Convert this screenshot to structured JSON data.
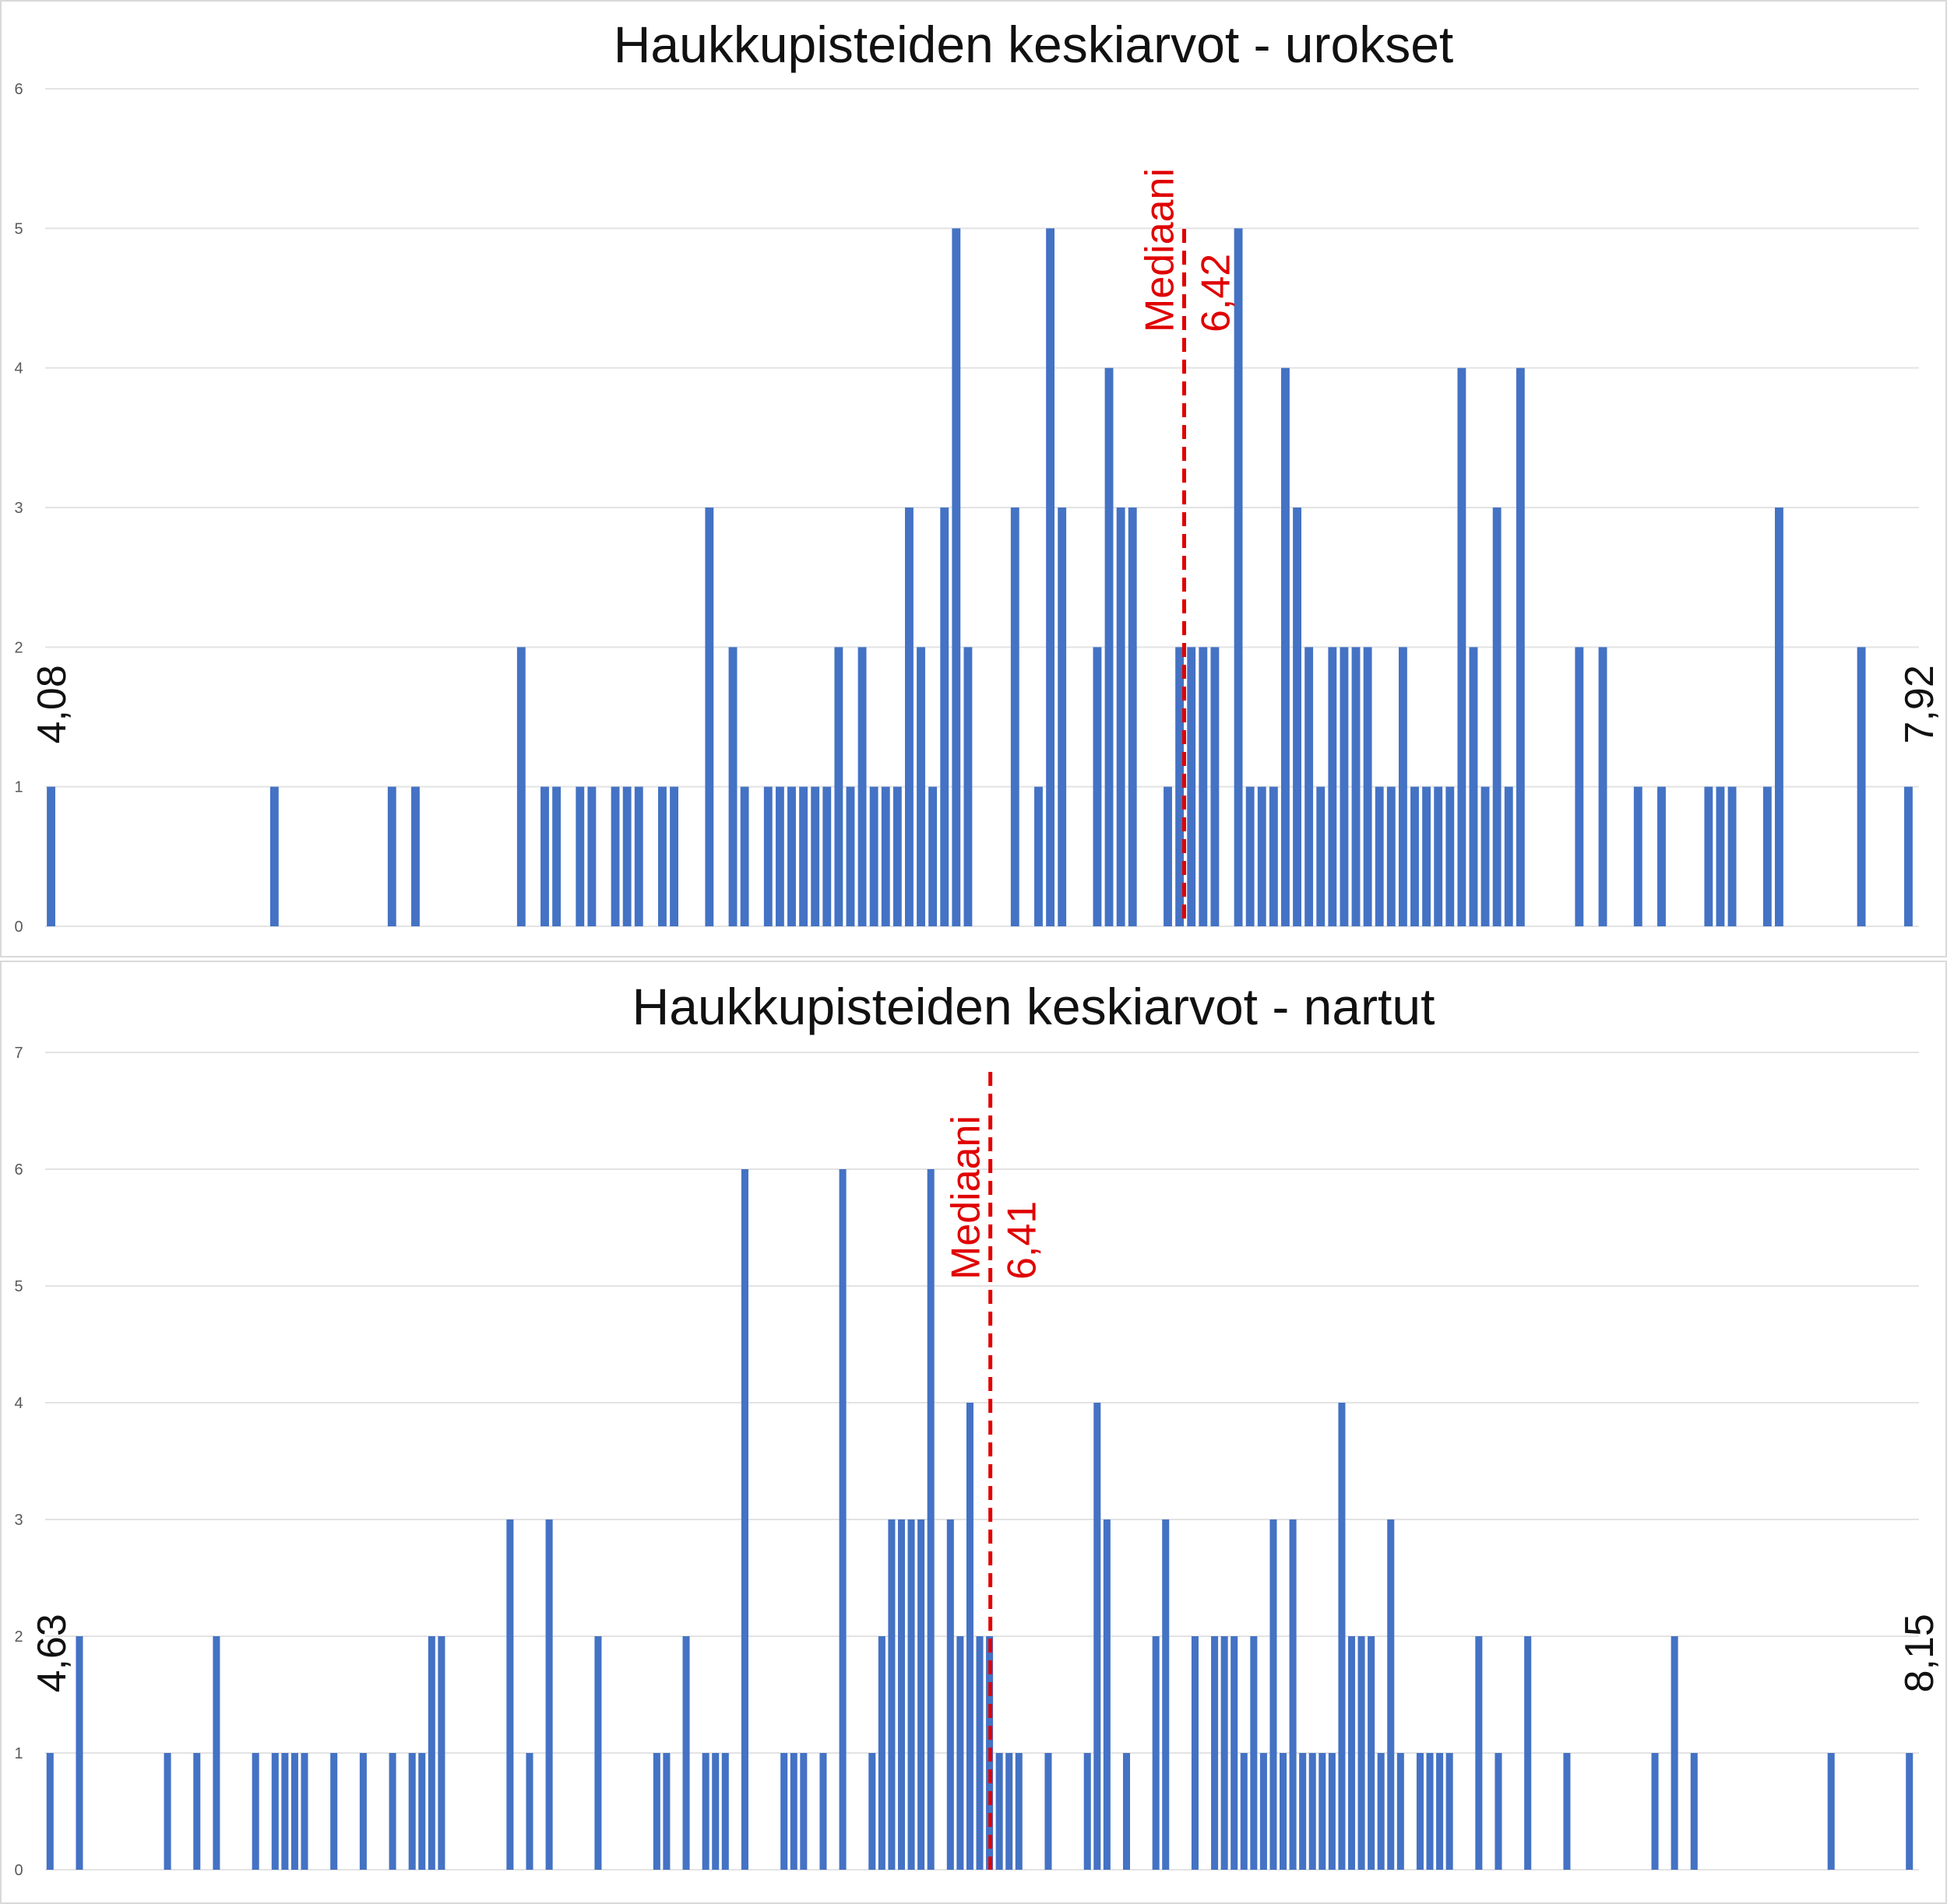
{
  "chart_data": [
    {
      "type": "bar",
      "title": "Haukkupisteiden keskiarvot - urokset",
      "ylim": [
        0,
        6
      ],
      "yticks": [
        0,
        1,
        2,
        3,
        4,
        5,
        6
      ],
      "grid": true,
      "legend": "none",
      "bar_color": "#4472C4",
      "annotation_color": "#E00000",
      "range_min_label": "4,08",
      "range_max_label": "7,92",
      "median_label": "Mediaani",
      "median_value_label": "6,42",
      "x_range": [
        4.08,
        7.92
      ],
      "median": 6.42,
      "values": [
        1,
        0,
        0,
        0,
        0,
        0,
        0,
        0,
        0,
        0,
        0,
        0,
        0,
        0,
        0,
        0,
        0,
        0,
        0,
        1,
        0,
        0,
        0,
        0,
        0,
        0,
        0,
        0,
        0,
        1,
        0,
        1,
        0,
        0,
        0,
        0,
        0,
        0,
        0,
        0,
        2,
        0,
        1,
        1,
        0,
        1,
        1,
        0,
        1,
        1,
        1,
        0,
        1,
        1,
        0,
        0,
        3,
        0,
        2,
        1,
        0,
        1,
        1,
        1,
        1,
        1,
        1,
        2,
        1,
        2,
        1,
        1,
        1,
        3,
        2,
        1,
        3,
        5,
        2,
        0,
        0,
        0,
        3,
        0,
        1,
        5,
        3,
        0,
        0,
        2,
        4,
        3,
        3,
        0,
        0,
        1,
        2,
        2,
        2,
        2,
        0,
        5,
        1,
        1,
        1,
        4,
        3,
        2,
        1,
        2,
        2,
        2,
        2,
        1,
        1,
        2,
        1,
        1,
        1,
        1,
        4,
        2,
        1,
        3,
        1,
        4,
        0,
        0,
        0,
        0,
        2,
        0,
        2,
        0,
        0,
        1,
        0,
        1,
        0,
        0,
        0,
        1,
        1,
        1,
        0,
        0,
        1,
        3,
        0,
        0,
        0,
        0,
        0,
        0,
        2,
        0,
        0,
        0,
        1
      ]
    },
    {
      "type": "bar",
      "title": "Haukkupisteiden keskiarvot - nartut",
      "ylim": [
        0,
        7
      ],
      "yticks": [
        0,
        1,
        2,
        3,
        4,
        5,
        6,
        7
      ],
      "grid": true,
      "legend": "none",
      "bar_color": "#4472C4",
      "annotation_color": "#E00000",
      "range_min_label": "4,63",
      "range_max_label": "8,15",
      "median_label": "Mediaani",
      "median_value_label": "6,41",
      "x_range": [
        4.63,
        8.15
      ],
      "median": 6.41,
      "values": [
        1,
        0,
        0,
        2,
        0,
        0,
        0,
        0,
        0,
        0,
        0,
        0,
        1,
        0,
        0,
        1,
        0,
        2,
        0,
        0,
        0,
        1,
        0,
        1,
        1,
        1,
        1,
        0,
        0,
        1,
        0,
        0,
        1,
        0,
        0,
        1,
        0,
        1,
        1,
        2,
        2,
        0,
        0,
        0,
        0,
        0,
        0,
        3,
        0,
        1,
        0,
        3,
        0,
        0,
        0,
        0,
        2,
        0,
        0,
        0,
        0,
        0,
        1,
        1,
        0,
        2,
        0,
        1,
        1,
        1,
        0,
        6,
        0,
        0,
        0,
        1,
        1,
        1,
        0,
        1,
        0,
        6,
        0,
        0,
        1,
        2,
        3,
        3,
        3,
        3,
        6,
        0,
        3,
        2,
        4,
        2,
        2,
        1,
        1,
        1,
        0,
        0,
        1,
        0,
        0,
        0,
        1,
        4,
        3,
        0,
        1,
        0,
        0,
        2,
        3,
        0,
        0,
        2,
        0,
        2,
        2,
        2,
        1,
        2,
        1,
        3,
        1,
        3,
        1,
        1,
        1,
        1,
        4,
        2,
        2,
        2,
        1,
        3,
        1,
        0,
        1,
        1,
        1,
        1,
        0,
        0,
        2,
        0,
        1,
        0,
        0,
        2,
        0,
        0,
        0,
        1,
        0,
        0,
        0,
        0,
        0,
        0,
        0,
        0,
        1,
        0,
        2,
        0,
        1,
        0,
        0,
        0,
        0,
        0,
        0,
        0,
        0,
        0,
        0,
        0,
        0,
        0,
        1,
        0,
        0,
        0,
        0,
        0,
        0,
        0,
        1
      ]
    }
  ]
}
